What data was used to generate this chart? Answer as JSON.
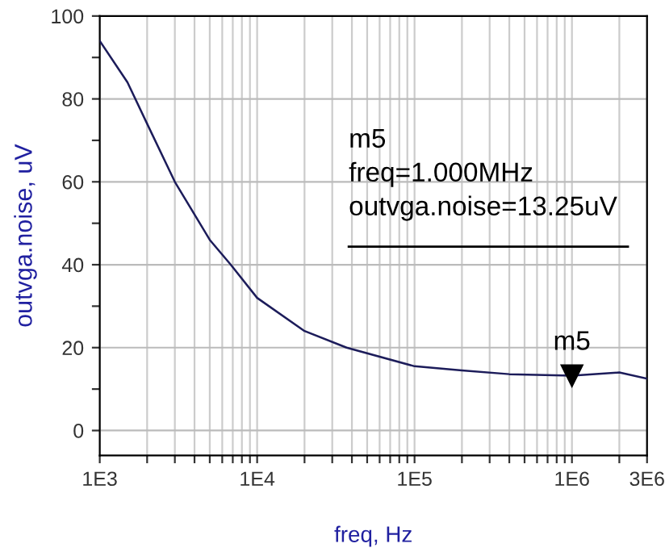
{
  "chart_data": {
    "type": "line",
    "xlabel": "freq, Hz",
    "ylabel": "outvga.noise, uV",
    "log": "x",
    "xlim": [
      1000,
      3000000
    ],
    "ylim": [
      -6,
      100
    ],
    "xticks": [
      {
        "value": 1000,
        "label": "1E3"
      },
      {
        "value": 2000,
        "label": null
      },
      {
        "value": 3000,
        "label": null
      },
      {
        "value": 4000,
        "label": null
      },
      {
        "value": 5000,
        "label": null
      },
      {
        "value": 6000,
        "label": null
      },
      {
        "value": 7000,
        "label": null
      },
      {
        "value": 8000,
        "label": null
      },
      {
        "value": 9000,
        "label": null
      },
      {
        "value": 10000,
        "label": "1E4"
      },
      {
        "value": 20000,
        "label": null
      },
      {
        "value": 30000,
        "label": null
      },
      {
        "value": 40000,
        "label": null
      },
      {
        "value": 50000,
        "label": null
      },
      {
        "value": 60000,
        "label": null
      },
      {
        "value": 70000,
        "label": null
      },
      {
        "value": 80000,
        "label": null
      },
      {
        "value": 90000,
        "label": null
      },
      {
        "value": 100000,
        "label": "1E5"
      },
      {
        "value": 200000,
        "label": null
      },
      {
        "value": 300000,
        "label": null
      },
      {
        "value": 400000,
        "label": null
      },
      {
        "value": 500000,
        "label": null
      },
      {
        "value": 600000,
        "label": null
      },
      {
        "value": 700000,
        "label": null
      },
      {
        "value": 800000,
        "label": null
      },
      {
        "value": 900000,
        "label": null
      },
      {
        "value": 1000000,
        "label": "1E6"
      },
      {
        "value": 2000000,
        "label": null
      },
      {
        "value": 3000000,
        "label": "3E6"
      }
    ],
    "yticks": [
      0,
      {
        "value": 10,
        "label": null
      },
      20,
      {
        "value": 30,
        "label": null
      },
      40,
      {
        "value": 50,
        "label": null
      },
      60,
      {
        "value": 70,
        "label": null
      },
      80,
      {
        "value": 90,
        "label": null
      },
      100
    ],
    "grid": true,
    "marker": "none",
    "line_style": "solid",
    "series": [
      {
        "color": "#1c1c5a",
        "x": [
          1000,
          1500,
          2000,
          3000,
          5000,
          6800,
          10000,
          20000,
          37000,
          100000,
          200000,
          400000,
          1000000,
          2000000,
          3000000
        ],
        "values": [
          94,
          84,
          74,
          60,
          46,
          40,
          32,
          24,
          20,
          15.5,
          14.5,
          13.6,
          13.25,
          14,
          12.5
        ]
      }
    ],
    "annotations": [
      {
        "text": "m5",
        "x": 1000000,
        "y": 13.25
      },
      "m5\nfreq=1.000MHz\noutvga.noise=13.25uV"
    ]
  }
}
